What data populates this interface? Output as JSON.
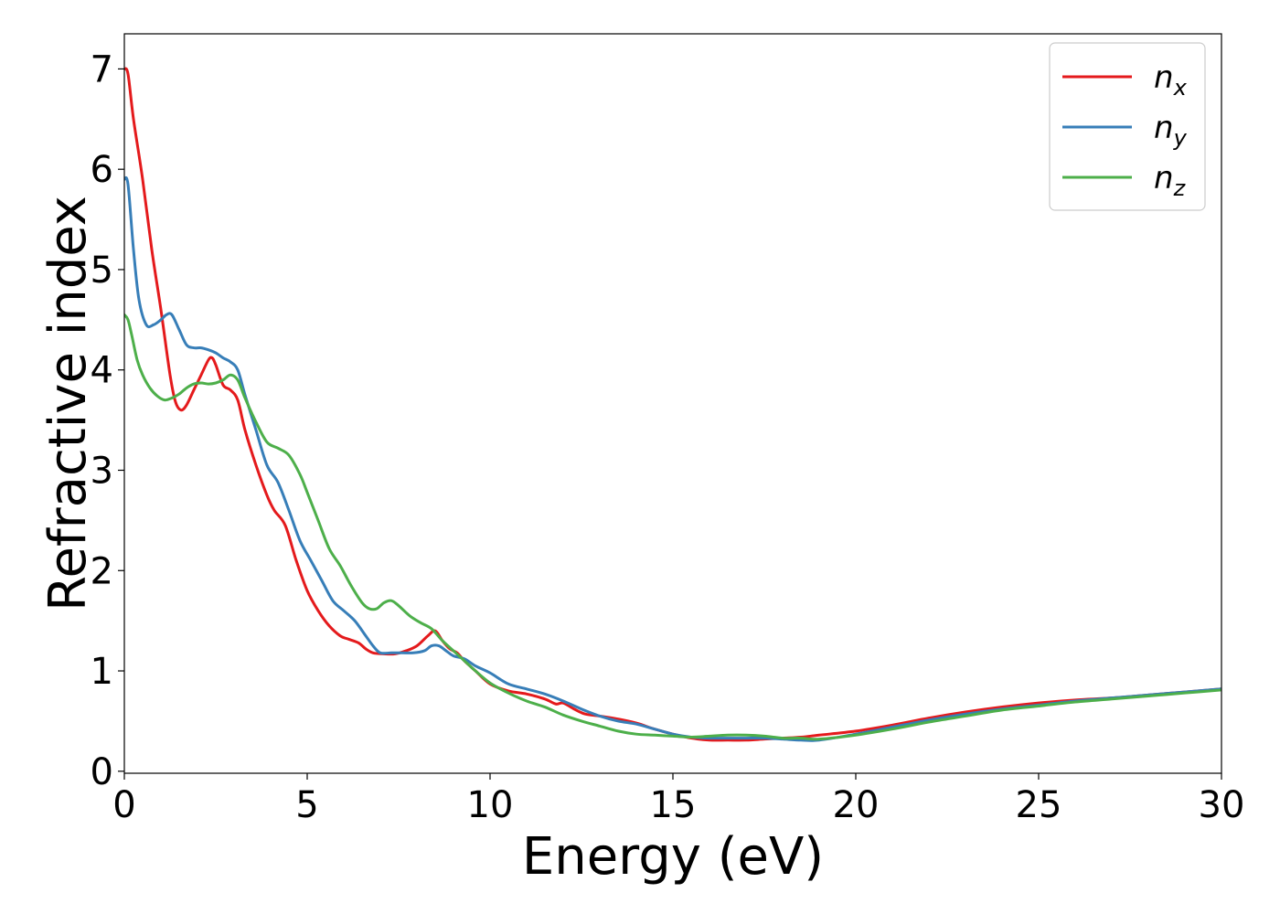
{
  "chart_data": {
    "type": "line",
    "title": "",
    "xlabel": "Energy (eV)",
    "ylabel": "Refractive index",
    "xlim": [
      0,
      30
    ],
    "ylim": [
      -0.02,
      7.35
    ],
    "xticks": [
      0,
      5,
      10,
      15,
      20,
      25,
      30
    ],
    "yticks": [
      0,
      1,
      2,
      3,
      4,
      5,
      6,
      7
    ],
    "grid": false,
    "legend_position": "top-right",
    "series": [
      {
        "name": "n",
        "subscript": "x",
        "color": "#e41a1c",
        "x": [
          0,
          0.1,
          0.25,
          0.5,
          0.75,
          1.0,
          1.25,
          1.4,
          1.55,
          1.7,
          1.9,
          2.1,
          2.3,
          2.4,
          2.5,
          2.7,
          2.9,
          3.1,
          3.3,
          3.6,
          3.9,
          4.1,
          4.4,
          4.7,
          5.0,
          5.3,
          5.6,
          5.9,
          6.1,
          6.4,
          6.6,
          6.8,
          7.1,
          7.4,
          7.7,
          8.0,
          8.3,
          8.5,
          8.7,
          8.9,
          9.1,
          9.3,
          9.6,
          10.0,
          10.5,
          11.0,
          11.5,
          11.8,
          12.0,
          12.3,
          12.6,
          13.0,
          13.5,
          14.0,
          14.5,
          15.0,
          15.5,
          16.0,
          16.5,
          17.0,
          17.5,
          18.0,
          18.5,
          19.0,
          20.0,
          21.0,
          22.0,
          23.0,
          24.0,
          25.0,
          26.0,
          27.0,
          28.0,
          29.0,
          30.0
        ],
        "values": [
          7.0,
          6.95,
          6.5,
          5.9,
          5.2,
          4.6,
          3.95,
          3.68,
          3.6,
          3.65,
          3.8,
          3.95,
          4.1,
          4.12,
          4.05,
          3.85,
          3.8,
          3.7,
          3.4,
          3.05,
          2.75,
          2.6,
          2.45,
          2.1,
          1.8,
          1.6,
          1.45,
          1.35,
          1.32,
          1.28,
          1.22,
          1.18,
          1.17,
          1.17,
          1.2,
          1.25,
          1.35,
          1.4,
          1.3,
          1.22,
          1.18,
          1.1,
          1.0,
          0.87,
          0.8,
          0.77,
          0.72,
          0.67,
          0.68,
          0.62,
          0.57,
          0.55,
          0.52,
          0.48,
          0.42,
          0.37,
          0.33,
          0.31,
          0.31,
          0.31,
          0.32,
          0.33,
          0.34,
          0.36,
          0.4,
          0.46,
          0.53,
          0.59,
          0.64,
          0.68,
          0.71,
          0.73,
          0.76,
          0.79,
          0.82
        ]
      },
      {
        "name": "n",
        "subscript": "y",
        "color": "#377eb8",
        "x": [
          0,
          0.1,
          0.25,
          0.4,
          0.6,
          0.8,
          1.0,
          1.15,
          1.3,
          1.5,
          1.7,
          1.9,
          2.1,
          2.3,
          2.5,
          2.7,
          2.9,
          3.1,
          3.3,
          3.6,
          3.9,
          4.2,
          4.5,
          4.8,
          5.1,
          5.4,
          5.7,
          6.0,
          6.3,
          6.6,
          6.8,
          7.0,
          7.3,
          7.6,
          7.9,
          8.2,
          8.4,
          8.6,
          8.8,
          9.0,
          9.3,
          9.6,
          10.0,
          10.5,
          11.0,
          11.5,
          12.0,
          12.5,
          13.0,
          13.5,
          14.0,
          14.5,
          15.0,
          15.5,
          16.0,
          16.5,
          17.0,
          17.5,
          18.0,
          18.5,
          19.0,
          20.0,
          21.0,
          22.0,
          23.0,
          24.0,
          25.0,
          26.0,
          27.0,
          28.0,
          29.0,
          30.0
        ],
        "values": [
          5.9,
          5.85,
          5.2,
          4.7,
          4.45,
          4.45,
          4.5,
          4.55,
          4.55,
          4.4,
          4.25,
          4.22,
          4.22,
          4.2,
          4.17,
          4.12,
          4.08,
          4.0,
          3.75,
          3.4,
          3.05,
          2.88,
          2.6,
          2.3,
          2.1,
          1.9,
          1.7,
          1.6,
          1.5,
          1.35,
          1.25,
          1.18,
          1.18,
          1.18,
          1.18,
          1.2,
          1.25,
          1.25,
          1.2,
          1.15,
          1.12,
          1.05,
          0.98,
          0.87,
          0.82,
          0.77,
          0.7,
          0.62,
          0.55,
          0.5,
          0.47,
          0.42,
          0.37,
          0.34,
          0.33,
          0.33,
          0.33,
          0.33,
          0.32,
          0.31,
          0.31,
          0.37,
          0.44,
          0.51,
          0.57,
          0.62,
          0.66,
          0.7,
          0.73,
          0.76,
          0.79,
          0.82
        ]
      },
      {
        "name": "n",
        "subscript": "z",
        "color": "#4daf4a",
        "x": [
          0,
          0.1,
          0.2,
          0.35,
          0.5,
          0.7,
          0.9,
          1.1,
          1.3,
          1.5,
          1.7,
          1.9,
          2.1,
          2.3,
          2.5,
          2.7,
          2.9,
          3.1,
          3.3,
          3.6,
          3.9,
          4.2,
          4.5,
          4.8,
          5.0,
          5.3,
          5.6,
          5.9,
          6.2,
          6.5,
          6.7,
          6.9,
          7.1,
          7.3,
          7.5,
          7.8,
          8.1,
          8.4,
          8.7,
          9.0,
          9.3,
          9.6,
          10.0,
          10.5,
          11.0,
          11.5,
          12.0,
          12.5,
          13.0,
          13.5,
          14.0,
          14.5,
          15.0,
          15.5,
          16.0,
          16.5,
          17.0,
          17.5,
          18.0,
          18.5,
          19.0,
          20.0,
          21.0,
          22.0,
          23.0,
          24.0,
          25.0,
          26.0,
          27.0,
          28.0,
          29.0,
          30.0
        ],
        "values": [
          4.55,
          4.5,
          4.35,
          4.1,
          3.95,
          3.82,
          3.74,
          3.7,
          3.72,
          3.76,
          3.82,
          3.86,
          3.87,
          3.86,
          3.87,
          3.9,
          3.95,
          3.9,
          3.72,
          3.48,
          3.28,
          3.22,
          3.15,
          2.96,
          2.78,
          2.5,
          2.22,
          2.05,
          1.85,
          1.68,
          1.62,
          1.62,
          1.68,
          1.7,
          1.65,
          1.55,
          1.48,
          1.42,
          1.3,
          1.2,
          1.1,
          1.0,
          0.88,
          0.78,
          0.7,
          0.64,
          0.56,
          0.5,
          0.45,
          0.4,
          0.37,
          0.36,
          0.35,
          0.34,
          0.35,
          0.36,
          0.36,
          0.35,
          0.33,
          0.33,
          0.32,
          0.36,
          0.42,
          0.49,
          0.55,
          0.61,
          0.65,
          0.69,
          0.72,
          0.75,
          0.78,
          0.81
        ]
      }
    ]
  }
}
